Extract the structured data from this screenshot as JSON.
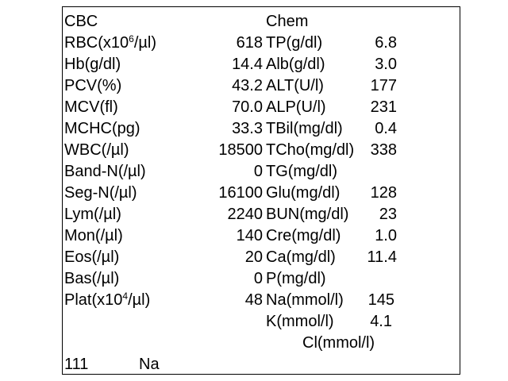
{
  "cbc": {
    "header": "CBC",
    "rows": [
      {
        "label_pre": "RBC(x10",
        "sup": "6",
        "label_post": "/µl)",
        "value": "618"
      },
      {
        "label": "Hb(g/dl)",
        "value": "14.4"
      },
      {
        "label": "PCV(%)",
        "value": "43.2"
      },
      {
        "label": "MCV(fl)",
        "value": "70.0"
      },
      {
        "label": "MCHC(pg)",
        "value": "33.3"
      },
      {
        "label": "WBC(/µl)",
        "value": "18500"
      },
      {
        "label": "Band-N(/µl)",
        "value": "0"
      },
      {
        "label": "Seg-N(/µl)",
        "value": "16100"
      },
      {
        "label": "Lym(/µl)",
        "value": "2240"
      },
      {
        "label": "Mon(/µl)",
        "value": "140"
      },
      {
        "label": "Eos(/µl)",
        "value": "20"
      },
      {
        "label": "Bas(/µl)",
        "value": "0"
      },
      {
        "label_pre": "Plat(x10",
        "sup": "4",
        "label_post": "/µl)",
        "value": "48"
      }
    ]
  },
  "chem": {
    "header": "Chem",
    "rows": [
      {
        "label": "TP(g/dl)",
        "value": "6.8"
      },
      {
        "label": "Alb(g/dl)",
        "value": "3.0"
      },
      {
        "label": "ALT(U/l)",
        "value": "177"
      },
      {
        "label": "ALP(U/l)",
        "value": "231"
      },
      {
        "label": "TBil(mg/dl)",
        "value": "0.4"
      },
      {
        "label": "TCho(mg/dl)",
        "value": "338"
      },
      {
        "label": "TG(mg/dl)",
        "value": ""
      },
      {
        "label": "Glu(mg/dl)",
        "value": "128"
      },
      {
        "label": "BUN(mg/dl)",
        "value": "23"
      },
      {
        "label": "Cre(mg/dl)",
        "value": "1.0"
      },
      {
        "label": "Ca(mg/dl)",
        "value": "11.4"
      },
      {
        "label": "P(mg/dl)",
        "value": ""
      },
      {
        "label": "Na(mmol/l)",
        "value": "145"
      },
      {
        "label": "K(mmol/l)",
        "value": "4.1"
      },
      {
        "label": "Cl(mmol/l)",
        "value": ""
      }
    ]
  },
  "footer": {
    "id": "111",
    "note": "Na"
  }
}
